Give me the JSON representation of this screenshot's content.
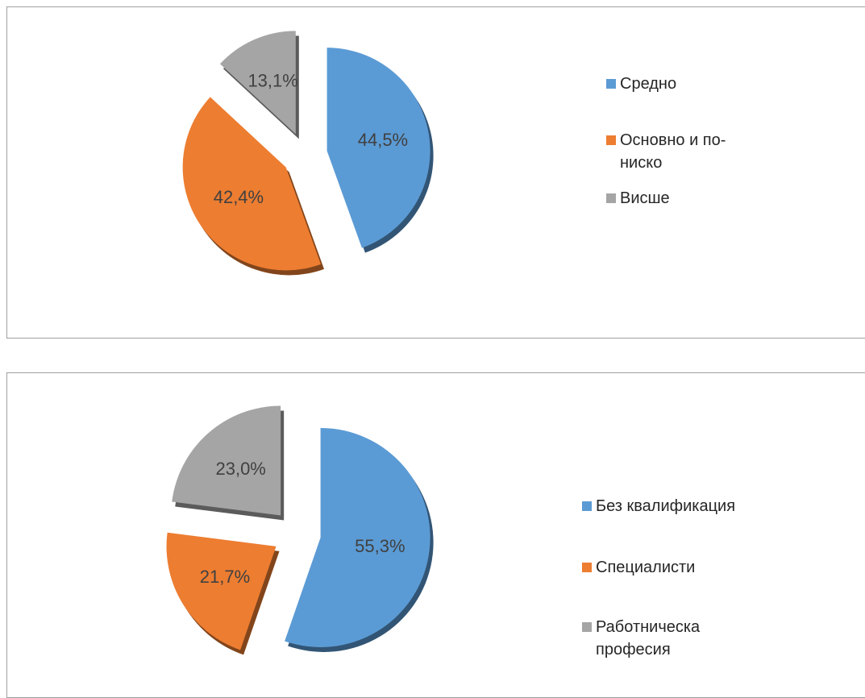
{
  "chart_data": [
    {
      "type": "pie",
      "categories": [
        "Средно",
        "Основно и по-ниско",
        "Висше"
      ],
      "values": [
        44.5,
        42.4,
        13.1
      ],
      "value_labels": [
        "44,5%",
        "42,4%",
        "13,1%"
      ],
      "colors": [
        "#5b9bd5",
        "#ed7d31",
        "#a5a5a5"
      ]
    },
    {
      "type": "pie",
      "categories": [
        "Без квалификация",
        "Специалисти",
        "Работническа професия"
      ],
      "values": [
        55.3,
        21.7,
        23.0
      ],
      "value_labels": [
        "55,3%",
        "21,7%",
        "23,0%"
      ],
      "colors": [
        "#5b9bd5",
        "#ed7d31",
        "#a5a5a5"
      ]
    }
  ]
}
